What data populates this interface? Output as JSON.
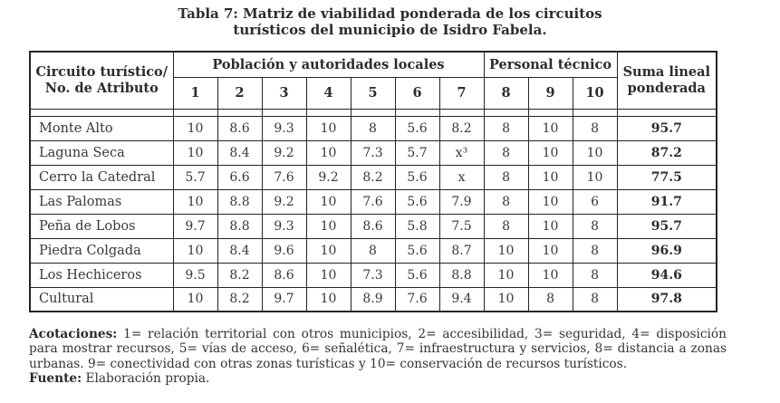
{
  "caption": "Tabla 7: Matriz de viabilidad ponderada de los circuitos\nturísticos del municipio de Isidro Fabela.",
  "table": {
    "corner_header": "Circuito turístico/\nNo. de Atributo",
    "groups": [
      {
        "label": "Población y autoridades locales",
        "span": 7
      },
      {
        "label": "Personal técnico",
        "span": 3
      }
    ],
    "suma_header": "Suma lineal\nponderada",
    "attribute_numbers": [
      "1",
      "2",
      "3",
      "4",
      "5",
      "6",
      "7",
      "8",
      "9",
      "10"
    ],
    "rows": [
      {
        "name": "Monte Alto",
        "values": [
          "10",
          "8.6",
          "9.3",
          "10",
          "8",
          "5.6",
          "8.2",
          "8",
          "10",
          "8"
        ],
        "suma": "95.7"
      },
      {
        "name": "Laguna Seca",
        "values": [
          "10",
          "8.4",
          "9.2",
          "10",
          "7.3",
          "5.7",
          "x³",
          "8",
          "10",
          "10"
        ],
        "suma": "87.2"
      },
      {
        "name": "Cerro la Catedral",
        "values": [
          "5.7",
          "6.6",
          "7.6",
          "9.2",
          "8.2",
          "5.6",
          "x",
          "8",
          "10",
          "10"
        ],
        "suma": "77.5"
      },
      {
        "name": "Las Palomas",
        "values": [
          "10",
          "8.8",
          "9.2",
          "10",
          "7.6",
          "5.6",
          "7.9",
          "8",
          "10",
          "6"
        ],
        "suma": "91.7"
      },
      {
        "name": "Peña de Lobos",
        "values": [
          "9.7",
          "8.8",
          "9.3",
          "10",
          "8.6",
          "5.8",
          "7.5",
          "8",
          "10",
          "8"
        ],
        "suma": "95.7"
      },
      {
        "name": "Piedra Colgada",
        "values": [
          "10",
          "8.4",
          "9.6",
          "10",
          "8",
          "5.6",
          "8.7",
          "10",
          "10",
          "8"
        ],
        "suma": "96.9"
      },
      {
        "name": "Los Hechiceros",
        "values": [
          "9.5",
          "8.2",
          "8.6",
          "10",
          "7.3",
          "5.6",
          "8.8",
          "10",
          "10",
          "8"
        ],
        "suma": "94.6"
      },
      {
        "name": "Cultural",
        "values": [
          "10",
          "8.2",
          "9.7",
          "10",
          "8.9",
          "7.6",
          "9.4",
          "10",
          "8",
          "8"
        ],
        "suma": "97.8"
      }
    ]
  },
  "notes": {
    "acotaciones_label": "Acotaciones:",
    "acotaciones_text": " 1= relación territorial con otros municipios, 2= accesibilidad, 3= seguridad, 4= disposición para mostrar recursos, 5= vías de acceso, 6= señalética, 7= infraestructura y servicios, 8= distancia a zonas urbanas. 9= conectividad con otras zonas turísticas y 10= conservación de recursos turísticos.",
    "fuente_label": "Fuente:",
    "fuente_text": " Elaboración propia."
  }
}
